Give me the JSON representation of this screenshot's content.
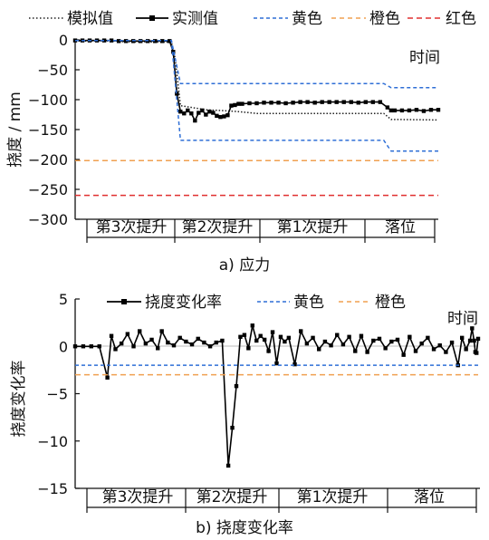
{
  "chart_data": [
    {
      "type": "line",
      "caption": "a) 应力",
      "ylabel": "挠度 / mm",
      "xlabel": "时间",
      "ylim": [
        -300,
        0
      ],
      "yticks": [
        "0",
        "−50",
        "−100",
        "−150",
        "−200",
        "−250",
        "−300"
      ],
      "stages": [
        "第3次提升",
        "第2次提升",
        "第1次提升",
        "落位"
      ],
      "legend": [
        "模拟值",
        "实测值",
        "黄色",
        "橙色",
        "红色"
      ],
      "colors": {
        "sim": "#222222",
        "meas": "#000000",
        "yellow": "#2f6fd6",
        "orange": "#f0a050",
        "red": "#e03030"
      },
      "series": [
        {
          "name": "模拟值",
          "style": "dotted",
          "points": [
            [
              0,
              -2
            ],
            [
              0.12,
              -2
            ],
            [
              0.12,
              -3
            ],
            [
              0.265,
              -4
            ],
            [
              0.275,
              -30
            ],
            [
              0.29,
              -110
            ],
            [
              0.36,
              -117
            ],
            [
              0.4,
              -118
            ],
            [
              0.45,
              -120
            ],
            [
              0.5,
              -123
            ],
            [
              0.85,
              -123
            ],
            [
              0.87,
              -133
            ],
            [
              1.0,
              -134
            ]
          ]
        },
        {
          "name": "实测值",
          "style": "solid-marker",
          "points": [
            [
              0,
              -1
            ],
            [
              0.02,
              -1
            ],
            [
              0.04,
              -1
            ],
            [
              0.06,
              -1
            ],
            [
              0.08,
              -1
            ],
            [
              0.1,
              -1
            ],
            [
              0.12,
              -2
            ],
            [
              0.14,
              -2
            ],
            [
              0.16,
              -2
            ],
            [
              0.18,
              -2
            ],
            [
              0.2,
              -2
            ],
            [
              0.22,
              -2
            ],
            [
              0.24,
              -2
            ],
            [
              0.26,
              -2
            ],
            [
              0.27,
              -20
            ],
            [
              0.28,
              -90
            ],
            [
              0.29,
              -120
            ],
            [
              0.3,
              -123
            ],
            [
              0.31,
              -118
            ],
            [
              0.32,
              -123
            ],
            [
              0.33,
              -135
            ],
            [
              0.34,
              -122
            ],
            [
              0.35,
              -118
            ],
            [
              0.36,
              -125
            ],
            [
              0.37,
              -120
            ],
            [
              0.38,
              -122
            ],
            [
              0.39,
              -127
            ],
            [
              0.4,
              -129
            ],
            [
              0.41,
              -128
            ],
            [
              0.42,
              -126
            ],
            [
              0.43,
              -110
            ],
            [
              0.44,
              -109
            ],
            [
              0.45,
              -107
            ],
            [
              0.46,
              -107
            ],
            [
              0.48,
              -106
            ],
            [
              0.5,
              -106
            ],
            [
              0.52,
              -105
            ],
            [
              0.54,
              -105
            ],
            [
              0.56,
              -105
            ],
            [
              0.58,
              -106
            ],
            [
              0.6,
              -105
            ],
            [
              0.62,
              -104
            ],
            [
              0.64,
              -104
            ],
            [
              0.66,
              -105
            ],
            [
              0.68,
              -104
            ],
            [
              0.7,
              -104
            ],
            [
              0.72,
              -104
            ],
            [
              0.74,
              -104
            ],
            [
              0.76,
              -104
            ],
            [
              0.78,
              -105
            ],
            [
              0.8,
              -104
            ],
            [
              0.82,
              -104
            ],
            [
              0.84,
              -104
            ],
            [
              0.86,
              -113
            ],
            [
              0.87,
              -118
            ],
            [
              0.88,
              -118
            ],
            [
              0.9,
              -118
            ],
            [
              0.92,
              -118
            ],
            [
              0.94,
              -117
            ],
            [
              0.96,
              -119
            ],
            [
              0.98,
              -117
            ],
            [
              1.0,
              -117
            ]
          ]
        },
        {
          "name": "黄色",
          "style": "dashed",
          "points": [
            [
              0,
              -1
            ],
            [
              0.265,
              -1
            ],
            [
              0.29,
              -73
            ],
            [
              0.85,
              -73
            ],
            [
              0.87,
              -80
            ],
            [
              1.0,
              -80
            ]
          ]
        },
        {
          "name": "黄色",
          "style": "dashed",
          "points": [
            [
              0,
              -1
            ],
            [
              0.265,
              -1
            ],
            [
              0.29,
              -168
            ],
            [
              0.85,
              -168
            ],
            [
              0.87,
              -186
            ],
            [
              1.0,
              -186
            ]
          ]
        },
        {
          "name": "橙色",
          "style": "dashed",
          "points": [
            [
              0,
              -202
            ],
            [
              1.0,
              -202
            ]
          ]
        },
        {
          "name": "红色",
          "style": "dashed",
          "points": [
            [
              0,
              -260
            ],
            [
              1.0,
              -260
            ]
          ]
        }
      ]
    },
    {
      "type": "line",
      "caption": "b) 挠度变化率",
      "ylabel": "挠度变化率",
      "xlabel": "时间",
      "ylim": [
        -15,
        5
      ],
      "yticks": [
        "5",
        "0",
        "−5",
        "−10",
        "−15"
      ],
      "stages": [
        "第3次提升",
        "第2次提升",
        "第1次提升",
        "落位"
      ],
      "legend": [
        "挠度变化率",
        "黄色",
        "橙色"
      ],
      "colors": {
        "rate": "#000000",
        "yellow": "#2f6fd6",
        "orange": "#f0a050"
      },
      "series": [
        {
          "name": "挠度变化率",
          "style": "solid-marker",
          "points": [
            [
              0.0,
              0
            ],
            [
              0.02,
              0
            ],
            [
              0.04,
              0
            ],
            [
              0.06,
              0
            ],
            [
              0.08,
              -3.3
            ],
            [
              0.09,
              1.1
            ],
            [
              0.1,
              -0.3
            ],
            [
              0.115,
              0.3
            ],
            [
              0.13,
              1.3
            ],
            [
              0.145,
              0
            ],
            [
              0.16,
              1.6
            ],
            [
              0.175,
              0.3
            ],
            [
              0.19,
              0.7
            ],
            [
              0.205,
              -0.2
            ],
            [
              0.215,
              1.6
            ],
            [
              0.23,
              0.4
            ],
            [
              0.245,
              0.1
            ],
            [
              0.26,
              0.9
            ],
            [
              0.275,
              0.5
            ],
            [
              0.29,
              0.2
            ],
            [
              0.305,
              0.8
            ],
            [
              0.32,
              0.4
            ],
            [
              0.335,
              0
            ],
            [
              0.35,
              0.4
            ],
            [
              0.365,
              0.6
            ],
            [
              0.38,
              -12.6
            ],
            [
              0.39,
              -8.6
            ],
            [
              0.4,
              -4.2
            ],
            [
              0.41,
              1.0
            ],
            [
              0.42,
              1.2
            ],
            [
              0.43,
              -0.2
            ],
            [
              0.44,
              2.2
            ],
            [
              0.45,
              0.6
            ],
            [
              0.46,
              1.1
            ],
            [
              0.47,
              0.7
            ],
            [
              0.48,
              -0.5
            ],
            [
              0.49,
              1.5
            ],
            [
              0.5,
              -1.8
            ],
            [
              0.51,
              1.0
            ],
            [
              0.52,
              0.5
            ],
            [
              0.53,
              0.9
            ],
            [
              0.545,
              -1.9
            ],
            [
              0.56,
              1.6
            ],
            [
              0.575,
              0.3
            ],
            [
              0.59,
              0.9
            ],
            [
              0.605,
              -0.3
            ],
            [
              0.62,
              0.5
            ],
            [
              0.635,
              0.1
            ],
            [
              0.65,
              1.2
            ],
            [
              0.665,
              0.2
            ],
            [
              0.68,
              1.0
            ],
            [
              0.695,
              -0.5
            ],
            [
              0.71,
              1.1
            ],
            [
              0.725,
              -0.6
            ],
            [
              0.74,
              0.6
            ],
            [
              0.755,
              0.8
            ],
            [
              0.77,
              -0.2
            ],
            [
              0.785,
              0.5
            ],
            [
              0.8,
              0.7
            ],
            [
              0.815,
              -0.9
            ],
            [
              0.83,
              1.0
            ],
            [
              0.845,
              -0.5
            ],
            [
              0.86,
              0.3
            ],
            [
              0.875,
              0.9
            ],
            [
              0.89,
              -0.3
            ],
            [
              0.905,
              0.1
            ],
            [
              0.92,
              -0.6
            ],
            [
              0.935,
              0.4
            ],
            [
              0.95,
              -2.0
            ],
            [
              0.96,
              0.9
            ],
            [
              0.97,
              -0.3
            ],
            [
              0.98,
              0.6
            ],
            [
              0.985,
              1.9
            ],
            [
              0.99,
              0.6
            ],
            [
              0.993,
              -0.6
            ],
            [
              0.996,
              -0.7
            ],
            [
              1.0,
              0.8
            ]
          ]
        },
        {
          "name": "黄色",
          "style": "dashed",
          "points": [
            [
              0,
              -2
            ],
            [
              1.0,
              -2
            ]
          ]
        },
        {
          "name": "橙色",
          "style": "dashed",
          "points": [
            [
              0,
              -3
            ],
            [
              1.0,
              -3
            ]
          ]
        }
      ]
    }
  ]
}
